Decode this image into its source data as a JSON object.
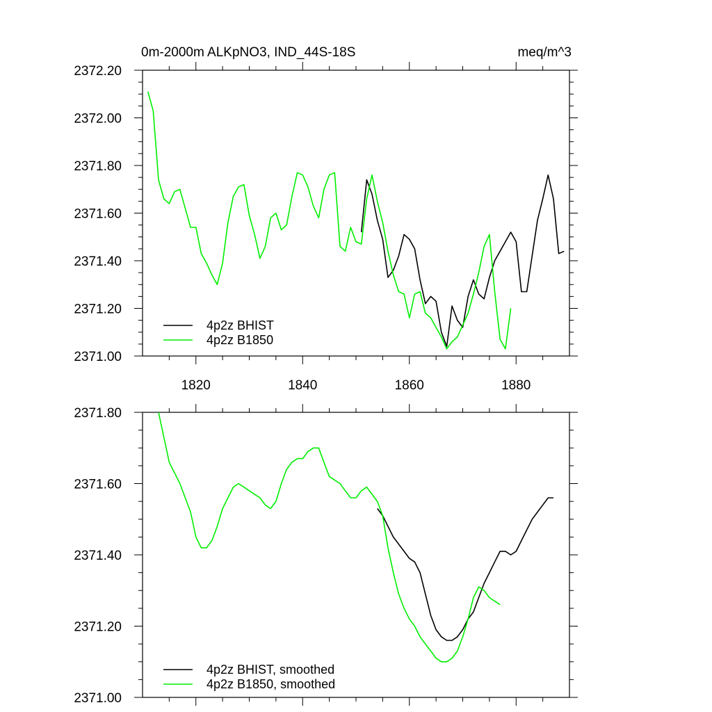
{
  "colors": {
    "bhist": "#000000",
    "b1850": "#00ee00",
    "axis": "#000000",
    "background": "#ffffff"
  },
  "header": {
    "title": "0m-2000m ALKpNO3, IND_44S-18S",
    "units": "meq/m^3"
  },
  "chart_data": [
    {
      "type": "line",
      "title": "0m-2000m ALKpNO3, IND_44S-18S",
      "units": "meq/m^3",
      "xlim": [
        1810,
        1890
      ],
      "ylim": [
        2371.0,
        2372.2
      ],
      "xticks": [
        1820,
        1840,
        1860,
        1880
      ],
      "xtick_labels": [
        "1820",
        "1840",
        "1860",
        "1880"
      ],
      "yticks": [
        2371.0,
        2371.2,
        2371.4,
        2371.6,
        2371.8,
        2372.0,
        2372.2
      ],
      "ytick_labels": [
        "2371.00",
        "2371.20",
        "2371.40",
        "2371.60",
        "2371.80",
        "2372.00",
        "2372.20"
      ],
      "legend_position": "bottom-left",
      "series": [
        {
          "name": "4p2z BHIST",
          "color": "#000000",
          "x": [
            1851,
            1852,
            1853,
            1854,
            1855,
            1856,
            1857,
            1858,
            1859,
            1860,
            1861,
            1862,
            1863,
            1864,
            1865,
            1866,
            1867,
            1868,
            1869,
            1870,
            1871,
            1872,
            1873,
            1874,
            1875,
            1876,
            1877,
            1878,
            1879,
            1880,
            1881,
            1882,
            1883,
            1884,
            1885,
            1886,
            1887,
            1888,
            1889
          ],
          "y": [
            2371.52,
            2371.74,
            2371.68,
            2371.57,
            2371.49,
            2371.33,
            2371.36,
            2371.42,
            2371.51,
            2371.49,
            2371.45,
            2371.32,
            2371.22,
            2371.25,
            2371.23,
            2371.1,
            2371.04,
            2371.21,
            2371.15,
            2371.12,
            2371.25,
            2371.32,
            2371.26,
            2371.24,
            2371.33,
            2371.4,
            2371.44,
            2371.48,
            2371.52,
            2371.48,
            2371.27,
            2371.27,
            2371.42,
            2371.57,
            2371.66,
            2371.76,
            2371.66,
            2371.43,
            2371.44
          ]
        },
        {
          "name": "4p2z B1850",
          "color": "#00ee00",
          "x": [
            1811,
            1812,
            1813,
            1814,
            1815,
            1816,
            1817,
            1818,
            1819,
            1820,
            1821,
            1822,
            1823,
            1824,
            1825,
            1826,
            1827,
            1828,
            1829,
            1830,
            1831,
            1832,
            1833,
            1834,
            1835,
            1836,
            1837,
            1838,
            1839,
            1840,
            1841,
            1842,
            1843,
            1844,
            1845,
            1846,
            1847,
            1848,
            1849,
            1850,
            1851,
            1852,
            1853,
            1854,
            1855,
            1856,
            1857,
            1858,
            1859,
            1860,
            1861,
            1862,
            1863,
            1864,
            1865,
            1866,
            1867,
            1868,
            1869,
            1870,
            1871,
            1872,
            1873,
            1874,
            1875,
            1876,
            1877,
            1878,
            1879
          ],
          "y": [
            2372.11,
            2372.03,
            2371.74,
            2371.66,
            2371.64,
            2371.69,
            2371.7,
            2371.62,
            2371.54,
            2371.54,
            2371.43,
            2371.39,
            2371.34,
            2371.3,
            2371.39,
            2371.56,
            2371.67,
            2371.71,
            2371.72,
            2371.59,
            2371.51,
            2371.41,
            2371.46,
            2371.58,
            2371.6,
            2371.53,
            2371.55,
            2371.67,
            2371.77,
            2371.76,
            2371.71,
            2371.63,
            2371.58,
            2371.7,
            2371.76,
            2371.77,
            2371.46,
            2371.44,
            2371.54,
            2371.48,
            2371.47,
            2371.66,
            2371.76,
            2371.65,
            2371.56,
            2371.44,
            2371.34,
            2371.27,
            2371.26,
            2371.16,
            2371.26,
            2371.27,
            2371.18,
            2371.16,
            2371.12,
            2371.08,
            2371.03,
            2371.06,
            2371.08,
            2371.13,
            2371.18,
            2371.26,
            2371.35,
            2371.46,
            2371.51,
            2371.27,
            2371.07,
            2371.03,
            2371.2
          ]
        }
      ]
    },
    {
      "type": "line",
      "xlim": [
        1810,
        1890
      ],
      "ylim": [
        2371.0,
        2371.8
      ],
      "xticks": [
        1820,
        1840,
        1860,
        1880
      ],
      "yticks": [
        2371.0,
        2371.2,
        2371.4,
        2371.6,
        2371.8
      ],
      "ytick_labels": [
        "2371.00",
        "2371.20",
        "2371.40",
        "2371.60",
        "2371.80"
      ],
      "legend_position": "bottom-left",
      "series": [
        {
          "name": "4p2z BHIST, smoothed",
          "color": "#000000",
          "x": [
            1854,
            1855,
            1856,
            1857,
            1858,
            1859,
            1860,
            1861,
            1862,
            1863,
            1864,
            1865,
            1866,
            1867,
            1868,
            1869,
            1870,
            1871,
            1872,
            1873,
            1874,
            1875,
            1876,
            1877,
            1878,
            1879,
            1880,
            1881,
            1882,
            1883,
            1884,
            1885,
            1886,
            1887
          ],
          "y": [
            2371.53,
            2371.51,
            2371.48,
            2371.45,
            2371.43,
            2371.41,
            2371.39,
            2371.38,
            2371.35,
            2371.29,
            2371.23,
            2371.19,
            2371.17,
            2371.16,
            2371.16,
            2371.17,
            2371.19,
            2371.22,
            2371.24,
            2371.28,
            2371.32,
            2371.35,
            2371.38,
            2371.41,
            2371.41,
            2371.4,
            2371.41,
            2371.44,
            2371.47,
            2371.5,
            2371.52,
            2371.54,
            2371.56,
            2371.56
          ]
        },
        {
          "name": "4p2z B1850, smoothed",
          "color": "#00ee00",
          "x": [
            1813,
            1814,
            1815,
            1816,
            1817,
            1818,
            1819,
            1820,
            1821,
            1822,
            1823,
            1824,
            1825,
            1826,
            1827,
            1828,
            1829,
            1830,
            1831,
            1832,
            1833,
            1834,
            1835,
            1836,
            1837,
            1838,
            1839,
            1840,
            1841,
            1842,
            1843,
            1844,
            1845,
            1846,
            1847,
            1848,
            1849,
            1850,
            1851,
            1852,
            1853,
            1854,
            1855,
            1856,
            1857,
            1858,
            1859,
            1860,
            1861,
            1862,
            1863,
            1864,
            1865,
            1866,
            1867,
            1868,
            1869,
            1870,
            1871,
            1872,
            1873,
            1874,
            1875,
            1876,
            1877
          ],
          "y": [
            2371.8,
            2371.73,
            2371.66,
            2371.63,
            2371.6,
            2371.56,
            2371.52,
            2371.45,
            2371.42,
            2371.42,
            2371.44,
            2371.48,
            2371.53,
            2371.56,
            2371.59,
            2371.6,
            2371.59,
            2371.58,
            2371.57,
            2371.56,
            2371.54,
            2371.53,
            2371.55,
            2371.6,
            2371.64,
            2371.66,
            2371.67,
            2371.67,
            2371.69,
            2371.7,
            2371.7,
            2371.66,
            2371.62,
            2371.61,
            2371.6,
            2371.58,
            2371.56,
            2371.56,
            2371.58,
            2371.59,
            2371.57,
            2371.55,
            2371.51,
            2371.42,
            2371.35,
            2371.29,
            2371.25,
            2371.22,
            2371.2,
            2371.17,
            2371.15,
            2371.13,
            2371.11,
            2371.1,
            2371.1,
            2371.11,
            2371.13,
            2371.17,
            2371.22,
            2371.28,
            2371.31,
            2371.3,
            2371.28,
            2371.27,
            2371.26
          ]
        }
      ]
    }
  ]
}
